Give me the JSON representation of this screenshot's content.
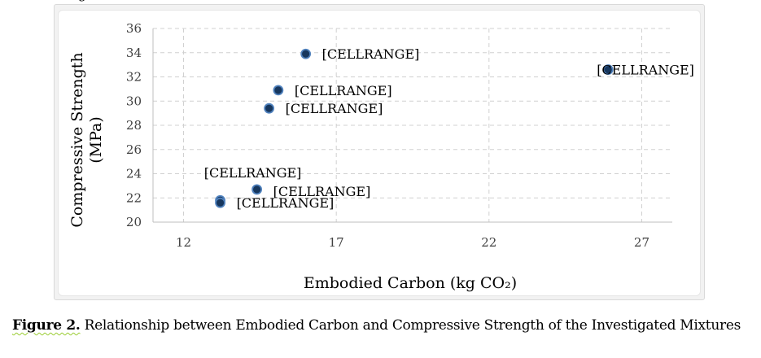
{
  "caption": {
    "label": "Figure 2.",
    "text": " Relationship between Embodied Carbon and Compressive Strength of the Investigated Mixtures"
  },
  "chart_data": {
    "type": "scatter",
    "title": "",
    "xlabel": "Embodied Carbon (kg CO₂)",
    "ylabel_line1": "Compressive Strength",
    "ylabel_line2": "(MPa)",
    "xlim": [
      11,
      28
    ],
    "ylim": [
      20,
      36
    ],
    "xticks": [
      12,
      17,
      22,
      27
    ],
    "yticks": [
      20,
      22,
      24,
      26,
      28,
      30,
      32,
      34,
      36
    ],
    "grid": true,
    "legend": "none",
    "marker_color": "#17375e",
    "points": [
      {
        "x": 16.0,
        "y": 33.9,
        "label": "[CELLRANGE]"
      },
      {
        "x": 25.9,
        "y": 32.6,
        "label": "[CELLRANGE]"
      },
      {
        "x": 15.1,
        "y": 30.9,
        "label": "[CELLRANGE]"
      },
      {
        "x": 14.8,
        "y": 29.4,
        "label": "[CELLRANGE]"
      },
      {
        "x": 13.2,
        "y": 21.8,
        "label": "[CELLRANGE]"
      },
      {
        "x": 14.4,
        "y": 22.7,
        "label": "[CELLRANGE]"
      },
      {
        "x": 13.2,
        "y": 21.6,
        "label": "[CELLRANGE]"
      }
    ]
  }
}
